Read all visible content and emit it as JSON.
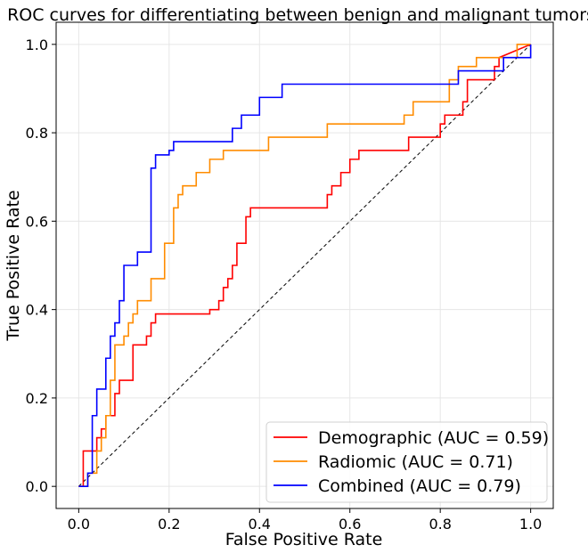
{
  "chart_data": {
    "type": "line",
    "title": "ROC curves for differentiating between benign and malignant tumors",
    "xlabel": "False Positive Rate",
    "ylabel": "True Positive Rate",
    "xlim": [
      -0.05,
      1.05
    ],
    "ylim": [
      -0.05,
      1.05
    ],
    "xticks": [
      0.0,
      0.2,
      0.4,
      0.6,
      0.8,
      1.0
    ],
    "yticks": [
      0.0,
      0.2,
      0.4,
      0.6,
      0.8,
      1.0
    ],
    "xtick_labels": [
      "0.0",
      "0.2",
      "0.4",
      "0.6",
      "0.8",
      "1.0"
    ],
    "ytick_labels": [
      "0.0",
      "0.2",
      "0.4",
      "0.6",
      "0.8",
      "1.0"
    ],
    "grid": true,
    "legend_position": "lower-right",
    "reference_line": {
      "x": [
        0,
        1
      ],
      "y": [
        0,
        1
      ],
      "color": "#000000",
      "style": "dashed"
    },
    "series": [
      {
        "name": "Demographic (AUC = 0.59)",
        "color": "#ff0000",
        "x": [
          0,
          0.01,
          0.01,
          0.04,
          0.04,
          0.05,
          0.05,
          0.06,
          0.06,
          0.08,
          0.08,
          0.09,
          0.09,
          0.12,
          0.12,
          0.15,
          0.15,
          0.16,
          0.16,
          0.17,
          0.17,
          0.29,
          0.29,
          0.31,
          0.31,
          0.32,
          0.32,
          0.33,
          0.33,
          0.34,
          0.34,
          0.35,
          0.35,
          0.37,
          0.37,
          0.38,
          0.38,
          0.55,
          0.55,
          0.56,
          0.56,
          0.58,
          0.58,
          0.6,
          0.6,
          0.62,
          0.62,
          0.73,
          0.73,
          0.75,
          0.75,
          0.8,
          0.8,
          0.81,
          0.81,
          0.85,
          0.85,
          0.86,
          0.86,
          0.92,
          0.92,
          0.93,
          0.93,
          1.0
        ],
        "y": [
          0,
          0,
          0.08,
          0.08,
          0.11,
          0.11,
          0.13,
          0.13,
          0.16,
          0.16,
          0.21,
          0.21,
          0.24,
          0.24,
          0.32,
          0.32,
          0.34,
          0.34,
          0.37,
          0.37,
          0.39,
          0.39,
          0.4,
          0.4,
          0.42,
          0.42,
          0.45,
          0.45,
          0.47,
          0.47,
          0.5,
          0.5,
          0.55,
          0.55,
          0.61,
          0.61,
          0.63,
          0.63,
          0.66,
          0.66,
          0.68,
          0.68,
          0.71,
          0.71,
          0.74,
          0.74,
          0.76,
          0.76,
          0.79,
          0.79,
          0.79,
          0.79,
          0.82,
          0.82,
          0.84,
          0.84,
          0.87,
          0.87,
          0.92,
          0.92,
          0.95,
          0.95,
          0.97,
          1.0
        ]
      },
      {
        "name": "Radiomic (AUC = 0.71)",
        "color": "#ff8c00",
        "x": [
          0,
          0.02,
          0.02,
          0.04,
          0.04,
          0.05,
          0.05,
          0.06,
          0.06,
          0.07,
          0.07,
          0.08,
          0.08,
          0.1,
          0.1,
          0.11,
          0.11,
          0.12,
          0.12,
          0.13,
          0.13,
          0.16,
          0.16,
          0.19,
          0.19,
          0.21,
          0.21,
          0.22,
          0.22,
          0.23,
          0.23,
          0.26,
          0.26,
          0.29,
          0.29,
          0.32,
          0.32,
          0.42,
          0.42,
          0.55,
          0.55,
          0.72,
          0.72,
          0.74,
          0.74,
          0.82,
          0.82,
          0.84,
          0.84,
          0.86,
          0.86,
          0.88,
          0.88,
          0.97,
          0.97,
          1.0,
          1.0
        ],
        "y": [
          0,
          0,
          0.03,
          0.03,
          0.08,
          0.08,
          0.11,
          0.11,
          0.16,
          0.16,
          0.24,
          0.24,
          0.32,
          0.32,
          0.34,
          0.34,
          0.37,
          0.37,
          0.39,
          0.39,
          0.42,
          0.42,
          0.47,
          0.47,
          0.55,
          0.55,
          0.63,
          0.63,
          0.66,
          0.66,
          0.68,
          0.68,
          0.71,
          0.71,
          0.74,
          0.74,
          0.76,
          0.76,
          0.79,
          0.79,
          0.82,
          0.82,
          0.84,
          0.84,
          0.87,
          0.87,
          0.92,
          0.92,
          0.95,
          0.95,
          0.95,
          0.95,
          0.97,
          0.97,
          1.0,
          1.0,
          1.0
        ]
      },
      {
        "name": "Combined (AUC = 0.79)",
        "color": "#0000ff",
        "x": [
          0,
          0.02,
          0.02,
          0.03,
          0.03,
          0.04,
          0.04,
          0.06,
          0.06,
          0.07,
          0.07,
          0.08,
          0.08,
          0.09,
          0.09,
          0.1,
          0.1,
          0.13,
          0.13,
          0.16,
          0.16,
          0.17,
          0.17,
          0.2,
          0.2,
          0.21,
          0.21,
          0.34,
          0.34,
          0.36,
          0.36,
          0.4,
          0.4,
          0.45,
          0.45,
          0.84,
          0.84,
          0.94,
          0.94,
          1.0,
          1.0
        ],
        "y": [
          0,
          0,
          0.03,
          0.03,
          0.16,
          0.16,
          0.22,
          0.22,
          0.29,
          0.29,
          0.34,
          0.34,
          0.37,
          0.37,
          0.42,
          0.42,
          0.5,
          0.5,
          0.53,
          0.53,
          0.72,
          0.72,
          0.75,
          0.75,
          0.76,
          0.76,
          0.78,
          0.78,
          0.81,
          0.81,
          0.84,
          0.84,
          0.88,
          0.88,
          0.91,
          0.91,
          0.94,
          0.94,
          0.97,
          0.97,
          1.0
        ]
      }
    ]
  }
}
